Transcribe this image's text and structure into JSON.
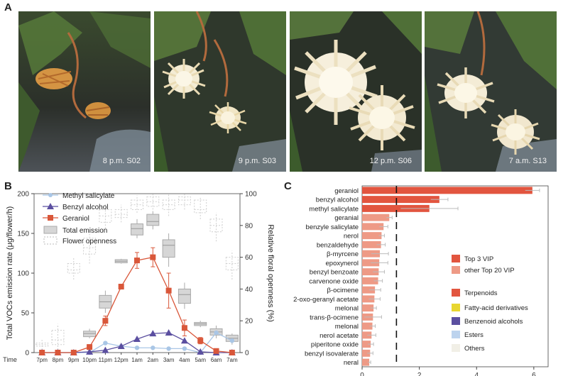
{
  "figure": {
    "panel_a": {
      "letter": "A"
    },
    "panel_b": {
      "letter": "B"
    },
    "panel_c": {
      "letter": "C"
    },
    "photos": [
      {
        "caption": "8 p.m. S02"
      },
      {
        "caption": "9 p.m. S03"
      },
      {
        "caption": "12 p.m. S06"
      },
      {
        "caption": "7 a.m. S13"
      }
    ],
    "colors": {
      "geraniol": "#d9573a",
      "benzyl": "#5b4fa0",
      "methyl": "#a9c6e6",
      "box": "#c8c8c8",
      "terpenoid": "#e2553f",
      "top20": "#ee9a86"
    }
  },
  "chart_data": [
    {
      "type": "line",
      "id": "panel_b",
      "xlabel": "Time",
      "ylabel": "Total VOCs emission rate (μg/flower/h)",
      "ylabel_right": "Relative floral openness (%)",
      "ylim": [
        0,
        200
      ],
      "ylim_right": [
        0,
        100
      ],
      "yticks": [
        0,
        50,
        100,
        150,
        200
      ],
      "yticks_right": [
        0,
        20,
        40,
        60,
        80,
        100
      ],
      "categories": [
        "7pm",
        "8pm",
        "9pm",
        "10pm",
        "11pm",
        "12pm",
        "1am",
        "2am",
        "3am",
        "4am",
        "5am",
        "6am",
        "7am"
      ],
      "series": [
        {
          "name": "Methyl salicylate",
          "marker": "circle",
          "color": "#a9c6e6",
          "values": [
            0,
            0,
            0,
            0,
            12,
            8,
            6,
            6,
            5,
            5,
            0,
            25,
            15
          ]
        },
        {
          "name": "Benzyl alcohol",
          "marker": "triangle",
          "color": "#5b4fa0",
          "values": [
            0,
            0,
            0,
            1,
            3,
            8,
            17,
            24,
            25,
            15,
            1,
            0,
            0
          ]
        },
        {
          "name": "Geraniol",
          "marker": "square",
          "color": "#d9573a",
          "values": [
            0,
            0,
            0,
            7,
            40,
            83,
            116,
            120,
            78,
            31,
            15,
            2,
            0
          ],
          "errors": [
            0,
            0,
            0,
            3,
            6,
            3,
            10,
            12,
            22,
            10,
            4,
            1,
            0
          ]
        }
      ],
      "total_emission_box": {
        "name": "Total emission",
        "q1": [
          0,
          0,
          0,
          20,
          56,
          113,
          148,
          160,
          120,
          62,
          34,
          22,
          14
        ],
        "q3": [
          0,
          0,
          0,
          27,
          72,
          117,
          162,
          174,
          142,
          80,
          38,
          30,
          22
        ],
        "med": [
          0,
          0,
          0,
          24,
          64,
          115,
          156,
          165,
          135,
          73,
          36,
          26,
          18
        ],
        "lo": [
          0,
          0,
          0,
          18,
          50,
          112,
          144,
          155,
          108,
          55,
          32,
          18,
          10
        ],
        "hi": [
          0,
          0,
          0,
          30,
          78,
          118,
          168,
          178,
          150,
          88,
          40,
          34,
          24
        ]
      },
      "openness_box": {
        "name": "Flower openness",
        "q1": [
          4,
          5,
          50,
          62,
          82,
          85,
          90,
          92,
          90,
          93,
          88,
          76,
          52
        ],
        "q3": [
          6,
          14,
          56,
          72,
          90,
          90,
          96,
          98,
          96,
          98,
          96,
          84,
          60
        ],
        "med": [
          5,
          8,
          52,
          66,
          86,
          87,
          93,
          95,
          93,
          96,
          90,
          80,
          56
        ],
        "lo": [
          0,
          0,
          46,
          56,
          78,
          82,
          88,
          90,
          86,
          90,
          84,
          70,
          46
        ],
        "hi": [
          8,
          18,
          60,
          76,
          94,
          93,
          99,
          100,
          100,
          100,
          98,
          88,
          64
        ]
      }
    },
    {
      "type": "bar",
      "id": "panel_c",
      "orientation": "horizontal",
      "categories": [
        "geraniol",
        "benzyl alcohol",
        "methyl salicylate",
        "geranial",
        "benzyle salicylate",
        "nerol",
        "benzaldehyde",
        "β-myrcene",
        "epoxynerol",
        "benzyl benzoate",
        "carvenone oxide",
        "β-ocimene",
        "2-oxo-geranyl acetate",
        "melonal",
        "trans-β-ocimene",
        "melonal",
        "nerol acetate",
        "piperitone oxide",
        "benzyl isovalerate",
        "neral"
      ],
      "values": [
        5.95,
        2.7,
        2.35,
        0.95,
        0.75,
        0.68,
        0.66,
        0.62,
        0.6,
        0.58,
        0.56,
        0.45,
        0.43,
        0.4,
        0.38,
        0.36,
        0.33,
        0.3,
        0.28,
        0.25
      ],
      "errors": [
        0.25,
        0.3,
        1.0,
        0.1,
        0.15,
        0.1,
        0.15,
        0.3,
        0.3,
        0.2,
        0.15,
        0.2,
        0.2,
        0.1,
        0.3,
        0.1,
        0.15,
        0.1,
        0.1,
        0.05
      ],
      "threshold": 1.2,
      "xlim": [
        0,
        6.5
      ],
      "xticks": [
        0,
        2,
        4,
        6
      ],
      "legend": [
        {
          "label": "Top 3 VIP",
          "color": "#e2553f"
        },
        {
          "label": "other Top 20 VIP",
          "color": "#ee9a86"
        },
        {
          "label": "Terpenoids",
          "color": "#e2553f"
        },
        {
          "label": "Fatty-acid derivatives",
          "color": "#e8d630"
        },
        {
          "label": "Benzenoid alcohols",
          "color": "#5b4fa0"
        },
        {
          "label": "Esters",
          "color": "#bcd3ee"
        },
        {
          "label": "Others",
          "color": "#f1efe6"
        }
      ]
    }
  ]
}
